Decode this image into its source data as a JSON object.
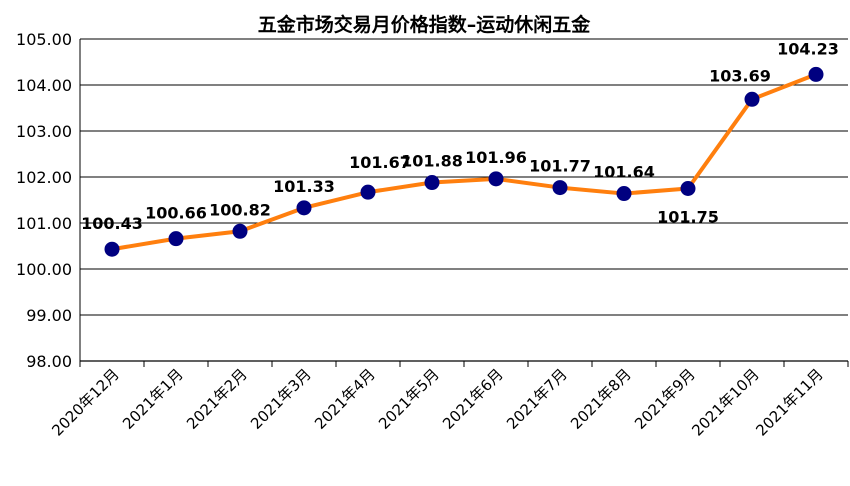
{
  "chart_data": {
    "type": "line",
    "title": "五金市场交易月价格指数–运动休闲五金",
    "xlabel": "",
    "ylabel": "",
    "categories": [
      "2020年12月",
      "2021年1月",
      "2021年2月",
      "2021年3月",
      "2021年4月",
      "2021年5月",
      "2021年6月",
      "2021年7月",
      "2021年8月",
      "2021年9月",
      "2021年10月",
      "2021年11月"
    ],
    "series": [
      {
        "values": [
          100.43,
          100.66,
          100.82,
          101.33,
          101.67,
          101.88,
          101.96,
          101.77,
          101.64,
          101.75,
          103.69,
          104.23
        ],
        "color": "#FF7F0E",
        "marker_color": "#000080"
      }
    ],
    "data_labels": [
      "100.43",
      "100.66",
      "100.82",
      "101.33",
      "101.67",
      "101.88",
      "101.96",
      "101.77",
      "101.64",
      "101.75",
      "103.69",
      "104.23"
    ],
    "yticks": [
      "98.00",
      "99.00",
      "100.00",
      "101.00",
      "102.00",
      "103.00",
      "104.00",
      "105.00"
    ],
    "ylim": [
      98,
      105
    ],
    "grid": true,
    "legend": "none"
  }
}
